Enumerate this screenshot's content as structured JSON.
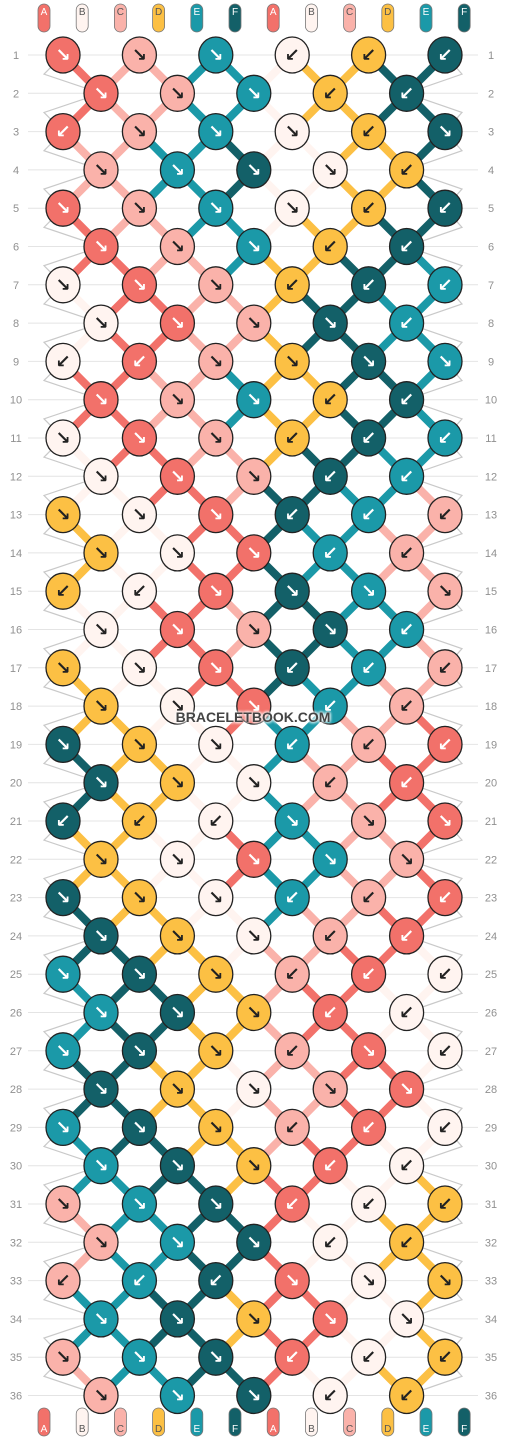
{
  "site": {
    "watermark": "BRACELETBOOK.COM"
  },
  "colors": {
    "A": "#f2716a",
    "B": "#fff4f0",
    "C": "#fab2aa",
    "D": "#fcc044",
    "E": "#1b99a8",
    "F": "#136068"
  },
  "strands": {
    "top": [
      "A",
      "B",
      "C",
      "D",
      "E",
      "F",
      "A",
      "B",
      "C",
      "D",
      "E",
      "F"
    ],
    "bottom": [
      "A",
      "B",
      "C",
      "D",
      "E",
      "F",
      "A",
      "B",
      "C",
      "D",
      "E",
      "F"
    ]
  },
  "rows": [
    "1",
    "2",
    "3",
    "4",
    "5",
    "6",
    "7",
    "8",
    "9",
    "10",
    "11",
    "12",
    "13",
    "14",
    "15",
    "16",
    "17",
    "18",
    "19",
    "20",
    "21",
    "22",
    "23",
    "24",
    "25",
    "26",
    "27",
    "28",
    "29",
    "30",
    "31",
    "32",
    "33",
    "34",
    "35",
    "36"
  ],
  "knots": [
    [
      [
        "A",
        "↘"
      ],
      [
        "C",
        "↘"
      ],
      [
        "E",
        "↘"
      ],
      [
        "B",
        "↙"
      ],
      [
        "D",
        "↙"
      ],
      [
        "F",
        "↙"
      ]
    ],
    [
      [
        "A",
        "↘"
      ],
      [
        "C",
        "↘"
      ],
      [
        "E",
        "↘"
      ],
      [
        "D",
        "↙"
      ],
      [
        "F",
        "↙"
      ]
    ],
    [
      [
        "A",
        "↙"
      ],
      [
        "C",
        "↘"
      ],
      [
        "E",
        "↘"
      ],
      [
        "B",
        "↘"
      ],
      [
        "D",
        "↙"
      ],
      [
        "F",
        "↘"
      ]
    ],
    [
      [
        "C",
        "↘"
      ],
      [
        "E",
        "↘"
      ],
      [
        "F",
        "↘"
      ],
      [
        "B",
        "↘"
      ],
      [
        "D",
        "↙"
      ]
    ],
    [
      [
        "A",
        "↘"
      ],
      [
        "C",
        "↘"
      ],
      [
        "E",
        "↘"
      ],
      [
        "B",
        "↘"
      ],
      [
        "D",
        "↙"
      ],
      [
        "F",
        "↙"
      ]
    ],
    [
      [
        "A",
        "↘"
      ],
      [
        "C",
        "↘"
      ],
      [
        "E",
        "↘"
      ],
      [
        "D",
        "↙"
      ],
      [
        "F",
        "↙"
      ]
    ],
    [
      [
        "B",
        "↘"
      ],
      [
        "A",
        "↘"
      ],
      [
        "C",
        "↘"
      ],
      [
        "D",
        "↙"
      ],
      [
        "F",
        "↙"
      ],
      [
        "E",
        "↙"
      ]
    ],
    [
      [
        "B",
        "↘"
      ],
      [
        "A",
        "↘"
      ],
      [
        "C",
        "↘"
      ],
      [
        "F",
        "↘"
      ],
      [
        "E",
        "↙"
      ]
    ],
    [
      [
        "B",
        "↙"
      ],
      [
        "A",
        "↙"
      ],
      [
        "C",
        "↘"
      ],
      [
        "D",
        "↘"
      ],
      [
        "F",
        "↘"
      ],
      [
        "E",
        "↘"
      ]
    ],
    [
      [
        "A",
        "↘"
      ],
      [
        "C",
        "↘"
      ],
      [
        "E",
        "↘"
      ],
      [
        "D",
        "↙"
      ],
      [
        "F",
        "↙"
      ]
    ],
    [
      [
        "B",
        "↘"
      ],
      [
        "A",
        "↘"
      ],
      [
        "C",
        "↘"
      ],
      [
        "D",
        "↙"
      ],
      [
        "F",
        "↙"
      ],
      [
        "E",
        "↙"
      ]
    ],
    [
      [
        "B",
        "↘"
      ],
      [
        "A",
        "↘"
      ],
      [
        "C",
        "↘"
      ],
      [
        "F",
        "↙"
      ],
      [
        "E",
        "↙"
      ]
    ],
    [
      [
        "D",
        "↘"
      ],
      [
        "B",
        "↘"
      ],
      [
        "A",
        "↘"
      ],
      [
        "F",
        "↙"
      ],
      [
        "E",
        "↙"
      ],
      [
        "C",
        "↙"
      ]
    ],
    [
      [
        "D",
        "↘"
      ],
      [
        "B",
        "↘"
      ],
      [
        "A",
        "↘"
      ],
      [
        "E",
        "↙"
      ],
      [
        "C",
        "↙"
      ]
    ],
    [
      [
        "D",
        "↙"
      ],
      [
        "B",
        "↙"
      ],
      [
        "A",
        "↘"
      ],
      [
        "F",
        "↘"
      ],
      [
        "E",
        "↘"
      ],
      [
        "C",
        "↘"
      ]
    ],
    [
      [
        "B",
        "↘"
      ],
      [
        "A",
        "↘"
      ],
      [
        "C",
        "↘"
      ],
      [
        "F",
        "↘"
      ],
      [
        "E",
        "↙"
      ]
    ],
    [
      [
        "D",
        "↘"
      ],
      [
        "B",
        "↘"
      ],
      [
        "A",
        "↘"
      ],
      [
        "F",
        "↙"
      ],
      [
        "E",
        "↙"
      ],
      [
        "C",
        "↙"
      ]
    ],
    [
      [
        "D",
        "↘"
      ],
      [
        "B",
        "↘"
      ],
      [
        "A",
        "↘"
      ],
      [
        "E",
        "↙"
      ],
      [
        "C",
        "↙"
      ]
    ],
    [
      [
        "F",
        "↘"
      ],
      [
        "D",
        "↘"
      ],
      [
        "B",
        "↘"
      ],
      [
        "E",
        "↙"
      ],
      [
        "C",
        "↙"
      ],
      [
        "A",
        "↙"
      ]
    ],
    [
      [
        "F",
        "↘"
      ],
      [
        "D",
        "↘"
      ],
      [
        "B",
        "↘"
      ],
      [
        "C",
        "↙"
      ],
      [
        "A",
        "↙"
      ]
    ],
    [
      [
        "F",
        "↙"
      ],
      [
        "D",
        "↙"
      ],
      [
        "B",
        "↙"
      ],
      [
        "E",
        "↘"
      ],
      [
        "C",
        "↘"
      ],
      [
        "A",
        "↘"
      ]
    ],
    [
      [
        "D",
        "↘"
      ],
      [
        "B",
        "↘"
      ],
      [
        "A",
        "↘"
      ],
      [
        "E",
        "↘"
      ],
      [
        "C",
        "↘"
      ]
    ],
    [
      [
        "F",
        "↘"
      ],
      [
        "D",
        "↘"
      ],
      [
        "B",
        "↘"
      ],
      [
        "E",
        "↙"
      ],
      [
        "C",
        "↙"
      ],
      [
        "A",
        "↙"
      ]
    ],
    [
      [
        "F",
        "↘"
      ],
      [
        "D",
        "↘"
      ],
      [
        "B",
        "↘"
      ],
      [
        "C",
        "↙"
      ],
      [
        "A",
        "↙"
      ]
    ],
    [
      [
        "E",
        "↘"
      ],
      [
        "F",
        "↘"
      ],
      [
        "D",
        "↘"
      ],
      [
        "C",
        "↙"
      ],
      [
        "A",
        "↙"
      ],
      [
        "B",
        "↙"
      ]
    ],
    [
      [
        "E",
        "↘"
      ],
      [
        "F",
        "↘"
      ],
      [
        "D",
        "↘"
      ],
      [
        "A",
        "↙"
      ],
      [
        "B",
        "↙"
      ]
    ],
    [
      [
        "E",
        "↘"
      ],
      [
        "F",
        "↘"
      ],
      [
        "D",
        "↘"
      ],
      [
        "C",
        "↙"
      ],
      [
        "A",
        "↘"
      ],
      [
        "B",
        "↙"
      ]
    ],
    [
      [
        "F",
        "↘"
      ],
      [
        "D",
        "↘"
      ],
      [
        "B",
        "↘"
      ],
      [
        "C",
        "↘"
      ],
      [
        "A",
        "↘"
      ]
    ],
    [
      [
        "E",
        "↘"
      ],
      [
        "F",
        "↘"
      ],
      [
        "D",
        "↘"
      ],
      [
        "C",
        "↙"
      ],
      [
        "A",
        "↙"
      ],
      [
        "B",
        "↙"
      ]
    ],
    [
      [
        "E",
        "↘"
      ],
      [
        "F",
        "↘"
      ],
      [
        "D",
        "↘"
      ],
      [
        "A",
        "↙"
      ],
      [
        "B",
        "↙"
      ]
    ],
    [
      [
        "C",
        "↘"
      ],
      [
        "E",
        "↘"
      ],
      [
        "F",
        "↘"
      ],
      [
        "A",
        "↙"
      ],
      [
        "B",
        "↙"
      ],
      [
        "D",
        "↙"
      ]
    ],
    [
      [
        "C",
        "↘"
      ],
      [
        "E",
        "↘"
      ],
      [
        "F",
        "↘"
      ],
      [
        "B",
        "↙"
      ],
      [
        "D",
        "↙"
      ]
    ],
    [
      [
        "C",
        "↙"
      ],
      [
        "E",
        "↙"
      ],
      [
        "F",
        "↙"
      ],
      [
        "A",
        "↘"
      ],
      [
        "B",
        "↘"
      ],
      [
        "D",
        "↘"
      ]
    ],
    [
      [
        "E",
        "↘"
      ],
      [
        "F",
        "↘"
      ],
      [
        "D",
        "↘"
      ],
      [
        "A",
        "↘"
      ],
      [
        "B",
        "↘"
      ]
    ],
    [
      [
        "C",
        "↘"
      ],
      [
        "E",
        "↘"
      ],
      [
        "F",
        "↘"
      ],
      [
        "A",
        "↙"
      ],
      [
        "B",
        "↙"
      ],
      [
        "D",
        "↙"
      ]
    ],
    [
      [
        "C",
        "↘"
      ],
      [
        "E",
        "↘"
      ],
      [
        "F",
        "↘"
      ],
      [
        "B",
        "↙"
      ],
      [
        "D",
        "↙"
      ]
    ]
  ]
}
